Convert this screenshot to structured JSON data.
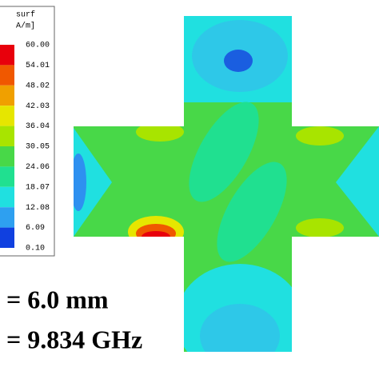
{
  "legend": {
    "title_lines": [
      "surf",
      "A/m]"
    ],
    "levels": [
      "60.00",
      "54.01",
      "48.02",
      "42.03",
      "36.04",
      "30.05",
      "24.06",
      "18.07",
      "12.08",
      "6.09",
      "0.10"
    ],
    "colors": [
      "#e8000c",
      "#f05800",
      "#f0a000",
      "#e6e600",
      "#a8e400",
      "#48d848",
      "#20e090",
      "#20e0e0",
      "#2ea0f0",
      "#1040e0"
    ]
  },
  "annotations": [
    "= 6.0 mm",
    "= 9.834 GHz"
  ]
}
